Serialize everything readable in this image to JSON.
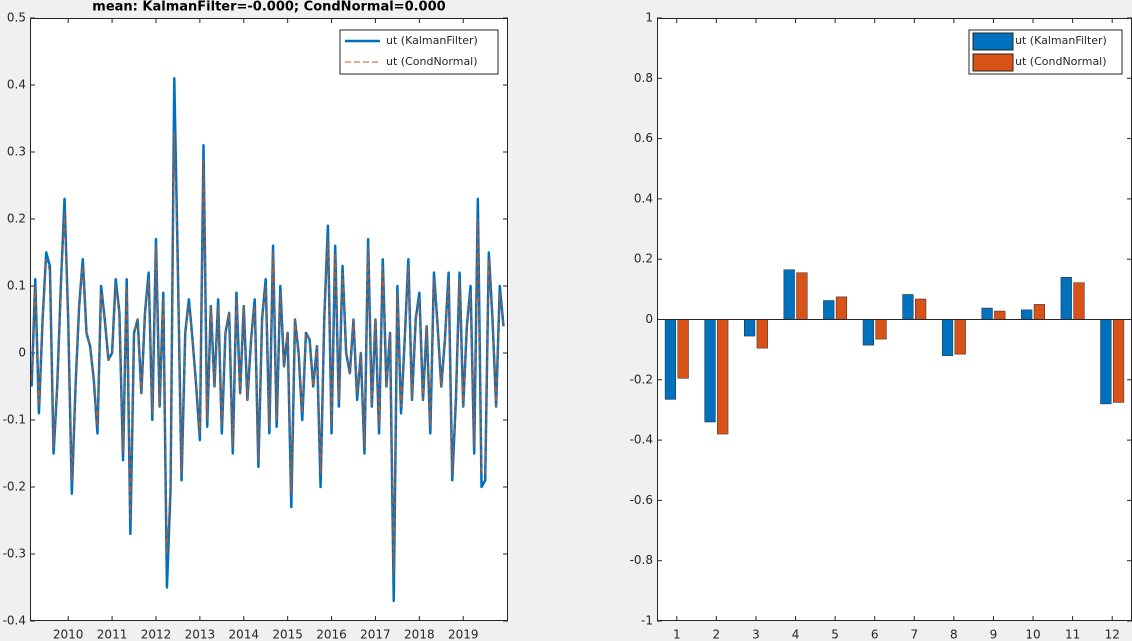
{
  "chart_data": [
    {
      "type": "line",
      "title": "mean: KalmanFilter=-0.000; CondNormal=0.000",
      "x": [
        2009.167,
        2009.25,
        2009.333,
        2009.417,
        2009.5,
        2009.583,
        2009.667,
        2009.75,
        2009.833,
        2009.917,
        2010.0,
        2010.083,
        2010.167,
        2010.25,
        2010.333,
        2010.417,
        2010.5,
        2010.583,
        2010.667,
        2010.75,
        2010.833,
        2010.917,
        2011.0,
        2011.083,
        2011.167,
        2011.25,
        2011.333,
        2011.417,
        2011.5,
        2011.583,
        2011.667,
        2011.75,
        2011.833,
        2011.917,
        2012.0,
        2012.083,
        2012.167,
        2012.25,
        2012.333,
        2012.417,
        2012.5,
        2012.583,
        2012.667,
        2012.75,
        2012.833,
        2012.917,
        2013.0,
        2013.083,
        2013.167,
        2013.25,
        2013.333,
        2013.417,
        2013.5,
        2013.583,
        2013.667,
        2013.75,
        2013.833,
        2013.917,
        2014.0,
        2014.083,
        2014.167,
        2014.25,
        2014.333,
        2014.417,
        2014.5,
        2014.583,
        2014.667,
        2014.75,
        2014.833,
        2014.917,
        2015.0,
        2015.083,
        2015.167,
        2015.25,
        2015.333,
        2015.417,
        2015.5,
        2015.583,
        2015.667,
        2015.75,
        2015.833,
        2015.917,
        2016.0,
        2016.083,
        2016.167,
        2016.25,
        2016.333,
        2016.417,
        2016.5,
        2016.583,
        2016.667,
        2016.75,
        2016.833,
        2016.917,
        2017.0,
        2017.083,
        2017.167,
        2017.25,
        2017.333,
        2017.417,
        2017.5,
        2017.583,
        2017.667,
        2017.75,
        2017.833,
        2017.917,
        2018.0,
        2018.083,
        2018.167,
        2018.25,
        2018.333,
        2018.417,
        2018.5,
        2018.583,
        2018.667,
        2018.75,
        2018.833,
        2018.917,
        2019.0,
        2019.083,
        2019.167,
        2019.25,
        2019.333,
        2019.417,
        2019.5,
        2019.583,
        2019.667,
        2019.75,
        2019.833,
        2019.917
      ],
      "series": [
        {
          "name": "ut (KalmanFilter)",
          "color": "#0072bd",
          "style": "solid",
          "values": [
            -0.05,
            0.11,
            -0.09,
            0.05,
            0.15,
            0.13,
            -0.15,
            -0.05,
            0.1,
            0.23,
            0.05,
            -0.21,
            -0.05,
            0.07,
            0.14,
            0.03,
            0.01,
            -0.04,
            -0.12,
            0.1,
            0.05,
            -0.01,
            0.0,
            0.11,
            0.06,
            -0.16,
            0.11,
            -0.27,
            0.03,
            0.05,
            -0.06,
            0.06,
            0.12,
            -0.1,
            0.17,
            -0.08,
            0.09,
            -0.35,
            -0.2,
            0.41,
            0.12,
            -0.19,
            0.03,
            0.08,
            0.02,
            -0.05,
            -0.13,
            0.31,
            -0.11,
            0.07,
            -0.05,
            0.08,
            -0.12,
            0.03,
            0.06,
            -0.15,
            0.09,
            -0.06,
            0.07,
            -0.07,
            0.02,
            0.08,
            -0.17,
            0.05,
            0.11,
            -0.12,
            0.16,
            -0.11,
            0.1,
            -0.02,
            0.03,
            -0.23,
            0.05,
            0.0,
            -0.1,
            0.03,
            0.02,
            -0.05,
            0.01,
            -0.2,
            0.05,
            0.19,
            -0.12,
            0.16,
            -0.08,
            0.13,
            0.0,
            -0.03,
            0.05,
            -0.07,
            0.0,
            -0.15,
            0.17,
            -0.08,
            0.05,
            -0.12,
            0.14,
            -0.05,
            0.03,
            -0.37,
            0.1,
            -0.09,
            0.02,
            0.14,
            -0.07,
            0.05,
            0.09,
            -0.07,
            0.04,
            -0.12,
            0.12,
            0.04,
            -0.05,
            0.02,
            0.12,
            -0.19,
            -0.07,
            0.12,
            -0.08,
            0.04,
            0.1,
            -0.15,
            0.23,
            -0.2,
            -0.19,
            0.15,
            0.05,
            -0.08,
            0.1,
            0.04
          ]
        },
        {
          "name": "ut (CondNormal)",
          "color": "#d95319",
          "style": "dashed",
          "values": [
            -0.04,
            0.1,
            -0.08,
            0.05,
            0.14,
            0.12,
            -0.14,
            -0.05,
            0.09,
            0.21,
            0.05,
            -0.19,
            -0.05,
            0.07,
            0.13,
            0.03,
            0.01,
            -0.04,
            -0.11,
            0.09,
            0.05,
            -0.01,
            0.0,
            0.1,
            0.06,
            -0.15,
            0.1,
            -0.25,
            0.03,
            0.05,
            -0.06,
            0.06,
            0.11,
            -0.09,
            0.16,
            -0.08,
            0.08,
            -0.3,
            -0.19,
            0.33,
            0.11,
            -0.18,
            0.03,
            0.07,
            0.02,
            -0.05,
            -0.12,
            0.29,
            -0.1,
            0.07,
            -0.05,
            0.07,
            -0.11,
            0.03,
            0.06,
            -0.14,
            0.08,
            -0.06,
            0.07,
            -0.07,
            0.02,
            0.07,
            -0.16,
            0.05,
            0.1,
            -0.11,
            0.15,
            -0.1,
            0.09,
            -0.02,
            0.03,
            -0.21,
            0.05,
            0.0,
            -0.09,
            0.03,
            0.02,
            -0.05,
            0.01,
            -0.18,
            0.05,
            0.17,
            -0.11,
            0.15,
            -0.07,
            0.12,
            0.0,
            -0.03,
            0.05,
            -0.06,
            0.0,
            -0.14,
            0.16,
            -0.08,
            0.05,
            -0.11,
            0.13,
            -0.05,
            0.03,
            -0.33,
            0.09,
            -0.08,
            0.02,
            0.13,
            -0.07,
            0.05,
            0.08,
            -0.07,
            0.04,
            -0.11,
            0.11,
            0.04,
            -0.05,
            0.02,
            0.11,
            -0.18,
            -0.07,
            0.11,
            -0.08,
            0.04,
            0.09,
            -0.14,
            0.2,
            -0.18,
            -0.18,
            0.14,
            0.05,
            -0.08,
            0.09,
            0.04
          ]
        }
      ],
      "xlim": [
        2009.13,
        2020.02
      ],
      "xticks": [
        2010,
        2011,
        2012,
        2013,
        2014,
        2015,
        2016,
        2017,
        2018,
        2019
      ],
      "ylim": [
        -0.4,
        0.5
      ],
      "yticks": [
        -0.4,
        -0.3,
        -0.2,
        -0.1,
        0,
        0.1,
        0.2,
        0.3,
        0.4,
        0.5
      ],
      "legend": "northeast"
    },
    {
      "type": "bar",
      "categories": [
        "1",
        "2",
        "3",
        "4",
        "5",
        "6",
        "7",
        "8",
        "9",
        "10",
        "11",
        "12"
      ],
      "series": [
        {
          "name": "ut (KalmanFilter)",
          "color": "#0072bd",
          "values": [
            -0.265,
            -0.34,
            -0.055,
            0.165,
            0.063,
            -0.085,
            0.083,
            -0.12,
            0.038,
            0.032,
            0.14,
            -0.28
          ]
        },
        {
          "name": "ut (CondNormal)",
          "color": "#d95319",
          "values": [
            -0.195,
            -0.38,
            -0.095,
            0.155,
            0.075,
            -0.065,
            0.068,
            -0.115,
            0.028,
            0.05,
            0.122,
            -0.275
          ]
        }
      ],
      "ylim": [
        -1,
        1
      ],
      "yticks": [
        -1,
        -0.8,
        -0.6,
        -0.4,
        -0.2,
        0,
        0.2,
        0.4,
        0.6,
        0.8,
        1
      ],
      "legend": "northeast"
    }
  ]
}
